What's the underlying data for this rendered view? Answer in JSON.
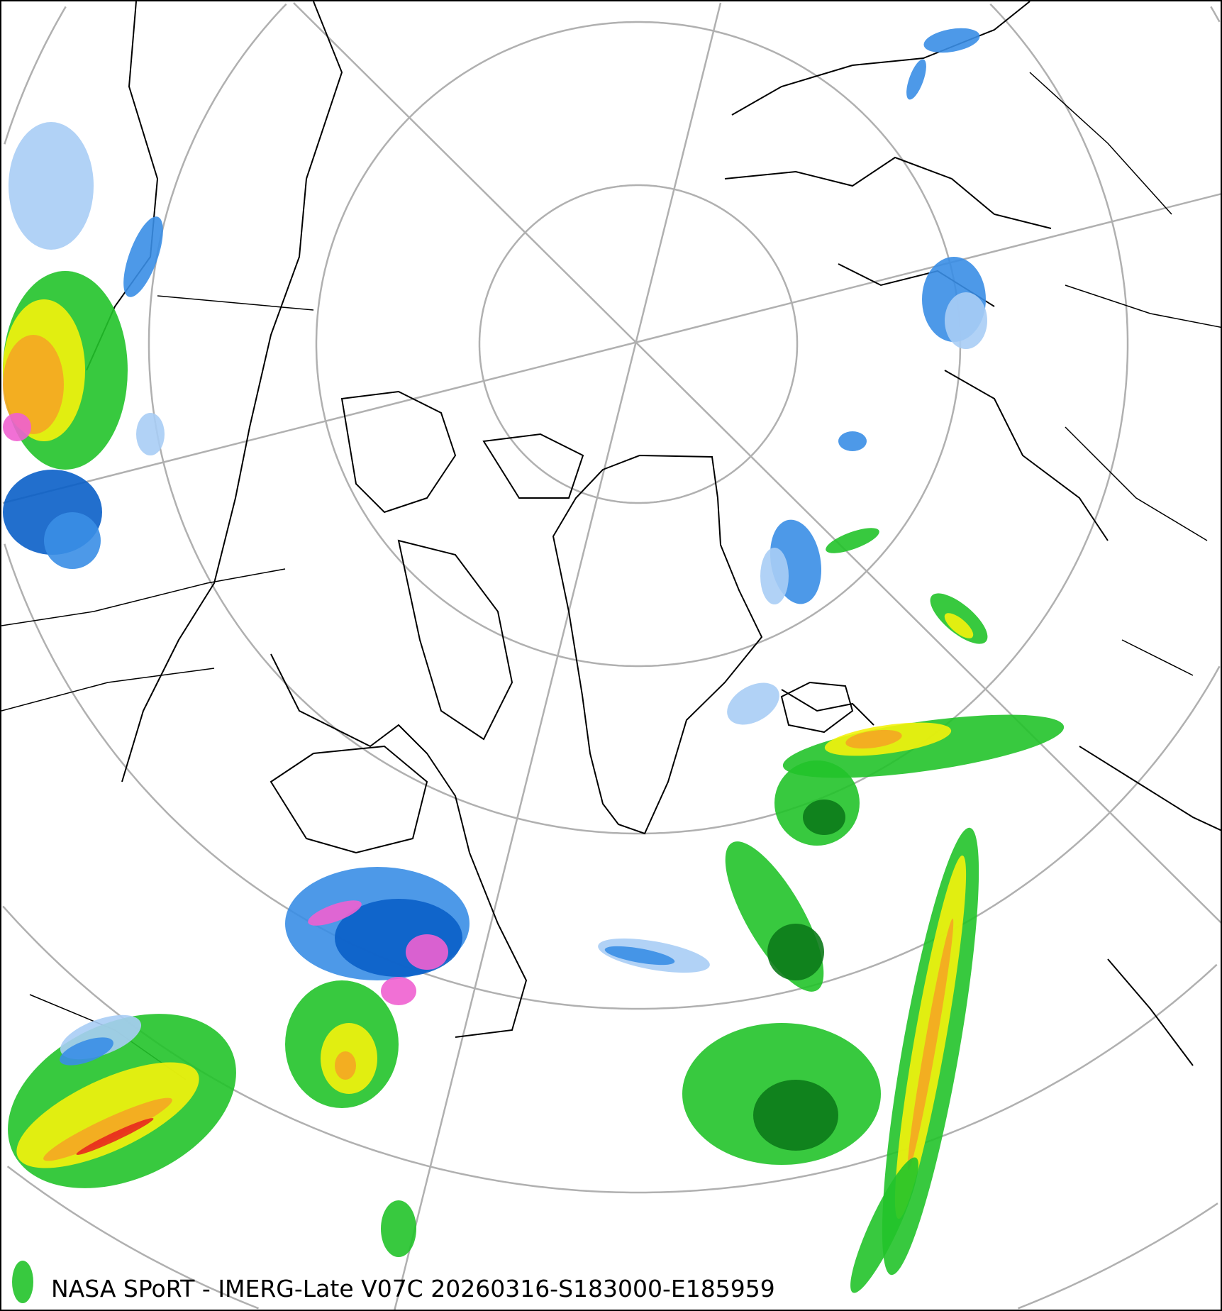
{
  "caption": "NASA SPoRT - IMERG-Late V07C 20260316-S183000-E185959",
  "map": {
    "projection": "north polar stereographic",
    "graticule_color": "#b0b0b0",
    "coastline_color": "#000000",
    "precip_colors": {
      "light_blue": "#a9cdf5",
      "blue": "#3a8ee6",
      "dark_blue": "#0a5fc8",
      "light_green": "#7ee84a",
      "green": "#22c32a",
      "dark_green": "#0c7a1a",
      "yellow": "#f4f20c",
      "orange": "#f5a623",
      "red": "#e8281e",
      "pink": "#f060d0"
    }
  }
}
